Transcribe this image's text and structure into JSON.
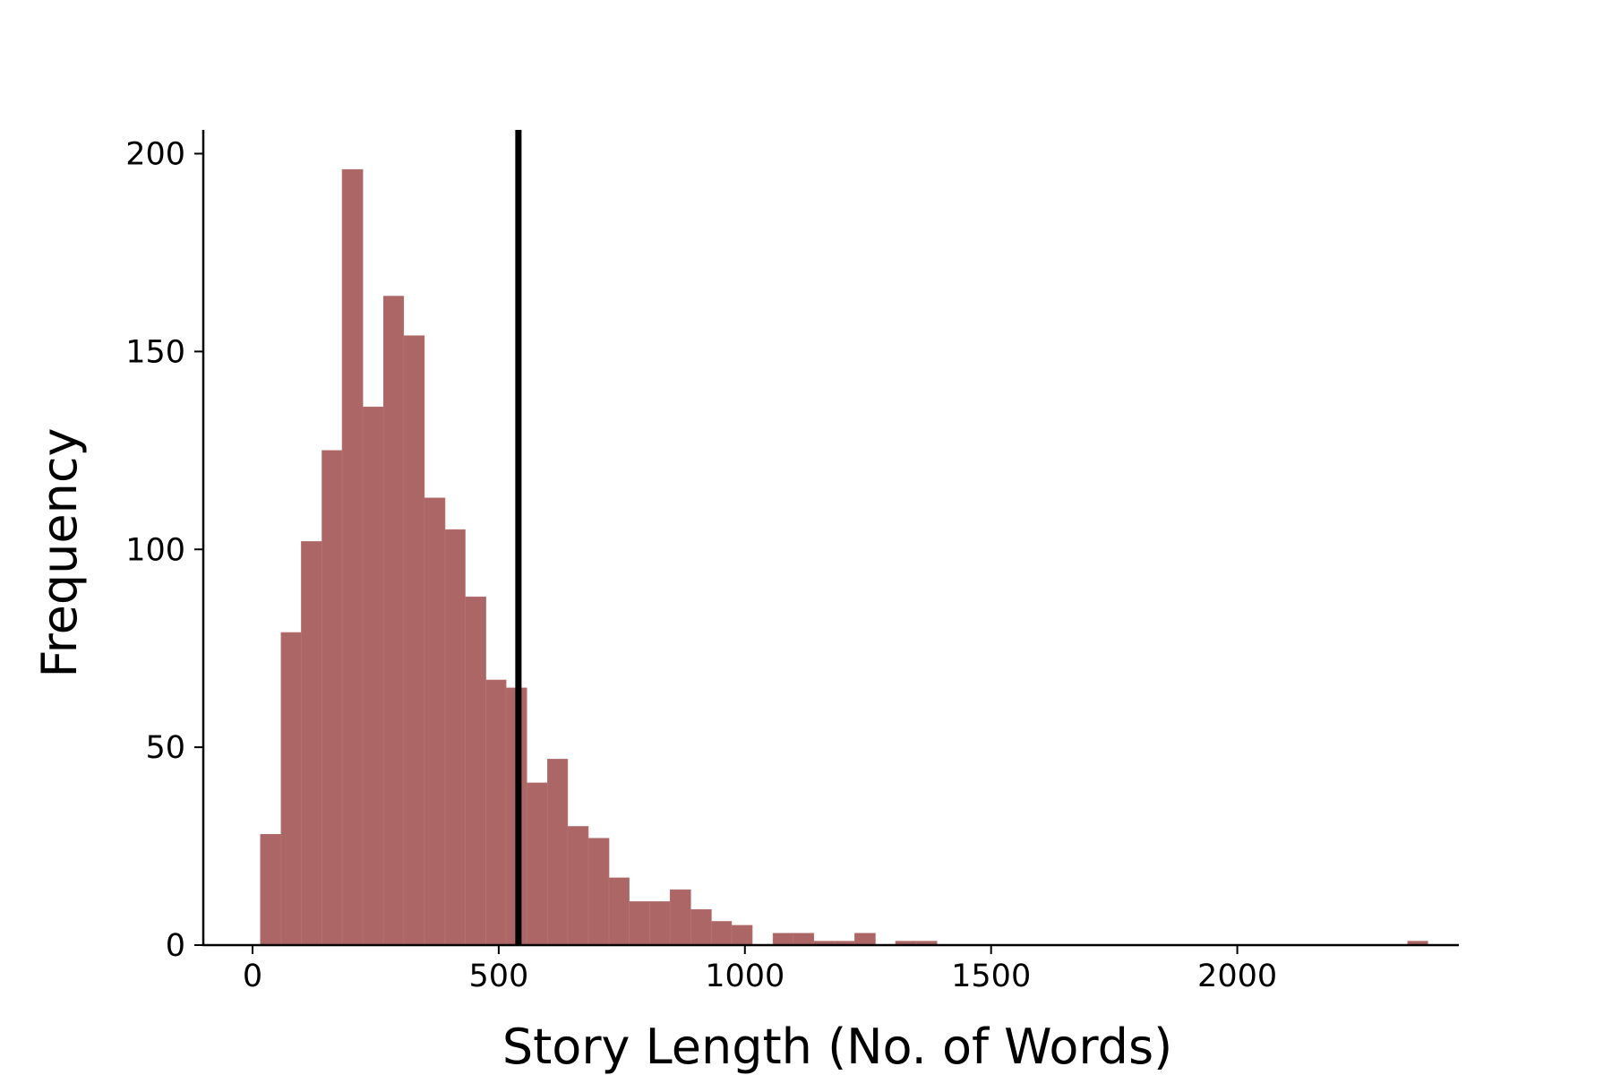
{
  "chart_data": {
    "type": "bar",
    "title": "",
    "xlabel": "Story Length (No. of Words)",
    "ylabel": "Frequency",
    "xlim": [
      -100,
      2450
    ],
    "ylim": [
      0,
      206
    ],
    "x_ticks": [
      0,
      500,
      1000,
      1500,
      2000
    ],
    "y_ticks": [
      0,
      50,
      100,
      150,
      200
    ],
    "bar_color": "#ad6666",
    "grid": false,
    "legend": "none",
    "bins": [
      {
        "x0": 16,
        "x1": 58,
        "count": 28
      },
      {
        "x0": 58,
        "x1": 99,
        "count": 79
      },
      {
        "x0": 99,
        "x1": 141,
        "count": 102
      },
      {
        "x0": 141,
        "x1": 182,
        "count": 125
      },
      {
        "x0": 182,
        "x1": 224,
        "count": 196
      },
      {
        "x0": 224,
        "x1": 266,
        "count": 136
      },
      {
        "x0": 266,
        "x1": 307,
        "count": 164
      },
      {
        "x0": 307,
        "x1": 349,
        "count": 154
      },
      {
        "x0": 349,
        "x1": 391,
        "count": 113
      },
      {
        "x0": 391,
        "x1": 432,
        "count": 105
      },
      {
        "x0": 432,
        "x1": 474,
        "count": 88
      },
      {
        "x0": 474,
        "x1": 515,
        "count": 67
      },
      {
        "x0": 515,
        "x1": 557,
        "count": 65
      },
      {
        "x0": 557,
        "x1": 599,
        "count": 41
      },
      {
        "x0": 599,
        "x1": 640,
        "count": 47
      },
      {
        "x0": 640,
        "x1": 682,
        "count": 30
      },
      {
        "x0": 682,
        "x1": 724,
        "count": 27
      },
      {
        "x0": 724,
        "x1": 765,
        "count": 17
      },
      {
        "x0": 765,
        "x1": 807,
        "count": 11
      },
      {
        "x0": 807,
        "x1": 848,
        "count": 11
      },
      {
        "x0": 848,
        "x1": 890,
        "count": 14
      },
      {
        "x0": 890,
        "x1": 932,
        "count": 9
      },
      {
        "x0": 932,
        "x1": 973,
        "count": 6
      },
      {
        "x0": 973,
        "x1": 1015,
        "count": 5
      },
      {
        "x0": 1015,
        "x1": 1057,
        "count": 0
      },
      {
        "x0": 1057,
        "x1": 1098,
        "count": 3
      },
      {
        "x0": 1098,
        "x1": 1140,
        "count": 3
      },
      {
        "x0": 1140,
        "x1": 1181,
        "count": 1
      },
      {
        "x0": 1181,
        "x1": 1223,
        "count": 1
      },
      {
        "x0": 1223,
        "x1": 1265,
        "count": 3
      },
      {
        "x0": 1265,
        "x1": 1306,
        "count": 0
      },
      {
        "x0": 1306,
        "x1": 1348,
        "count": 1
      },
      {
        "x0": 1348,
        "x1": 1390,
        "count": 1
      },
      {
        "x0": 2346,
        "x1": 2387,
        "count": 1
      }
    ],
    "vline": {
      "x": 540,
      "color": "#000000"
    }
  }
}
